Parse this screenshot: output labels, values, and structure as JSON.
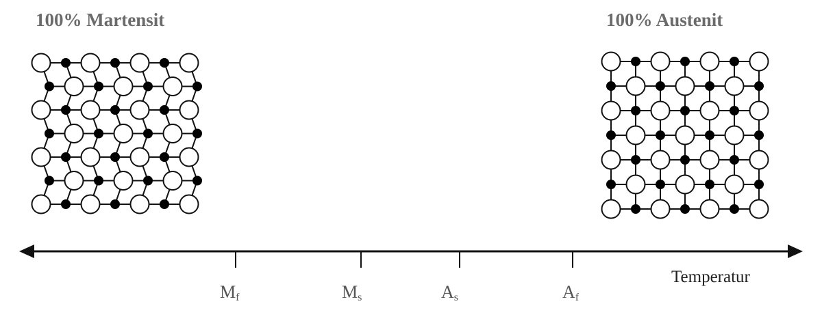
{
  "titles": {
    "martensite": "100% Martensit",
    "austenite": "100% Austenit"
  },
  "axis": {
    "label": "Temperatur",
    "ticks": [
      {
        "main": "M",
        "sub": "f"
      },
      {
        "main": "M",
        "sub": "s"
      },
      {
        "main": "A",
        "sub": "s"
      },
      {
        "main": "A",
        "sub": "f"
      }
    ]
  },
  "colors": {
    "heading": "#6b6b6b",
    "line": "#111111",
    "atom_small": "#000000",
    "atom_large": "#ffffff"
  }
}
